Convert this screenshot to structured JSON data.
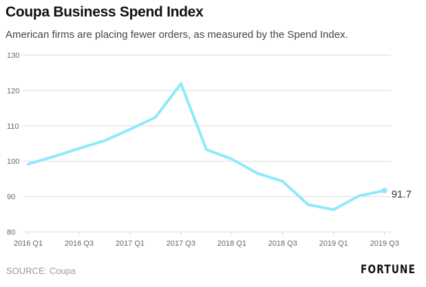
{
  "header": {
    "title": "Coupa Business Spend Index",
    "subtitle": "American firms are placing fewer orders, as measured by the Spend Index."
  },
  "footer": {
    "source": "SOURCE: Coupa",
    "brand": "FORTUNE"
  },
  "colors": {
    "line": "#8eeafa",
    "grid": "#d9d9d9",
    "axis_text": "#666666"
  },
  "chart_data": {
    "type": "line",
    "title": "Coupa Business Spend Index",
    "subtitle": "American firms are placing fewer orders, as measured by the Spend Index.",
    "xlabel": "",
    "ylabel": "",
    "x": [
      "2016 Q1",
      "2016 Q2",
      "2016 Q3",
      "2016 Q4",
      "2017 Q1",
      "2017 Q2",
      "2017 Q3",
      "2017 Q4",
      "2018 Q1",
      "2018 Q2",
      "2018 Q3",
      "2018 Q4",
      "2019 Q1",
      "2019 Q2",
      "2019 Q3"
    ],
    "series": [
      {
        "name": "Spend Index",
        "values": [
          99.2,
          101.3,
          103.6,
          105.8,
          109.0,
          112.4,
          121.9,
          103.3,
          100.6,
          96.6,
          94.3,
          87.7,
          86.3,
          90.2,
          91.7
        ]
      }
    ],
    "x_tick_labels": [
      "2016 Q1",
      "2016 Q3",
      "2017 Q1",
      "2017 Q3",
      "2018 Q1",
      "2018 Q3",
      "2019 Q1",
      "2019 Q3"
    ],
    "y_ticks": [
      80,
      90,
      100,
      110,
      120,
      130
    ],
    "ylim": [
      80,
      130
    ],
    "grid": true,
    "end_label": "91.7",
    "legend": "none"
  }
}
